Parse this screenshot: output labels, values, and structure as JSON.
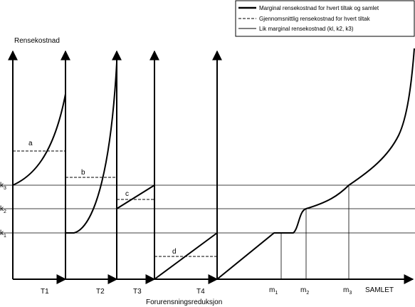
{
  "legend": {
    "items": [
      {
        "label": "Marginal rensekostnad for hvert tiltak og samlet",
        "style": "thick"
      },
      {
        "label": "Gjennomsnittlig rensekostnad for hvert tiltak",
        "style": "dashed"
      },
      {
        "label": "Lik marginal rensekostnad (kl, k2, k3)",
        "style": "thin"
      }
    ]
  },
  "axes": {
    "y_title": "Rensekostnad",
    "x_title": "Forurensningsreduksjon",
    "k_levels": [
      {
        "base": "k",
        "sub": "3"
      },
      {
        "base": "k",
        "sub": "2"
      },
      {
        "base": "k",
        "sub": "1"
      }
    ],
    "segments": [
      "T1",
      "T2",
      "T3",
      "T4"
    ],
    "m_labels": [
      {
        "base": "m",
        "sub": "1"
      },
      {
        "base": "m",
        "sub": "2"
      },
      {
        "base": "m",
        "sub": "3"
      }
    ],
    "samlet": "SAMLET"
  },
  "average_labels": [
    "a",
    "b",
    "c",
    "d"
  ]
}
